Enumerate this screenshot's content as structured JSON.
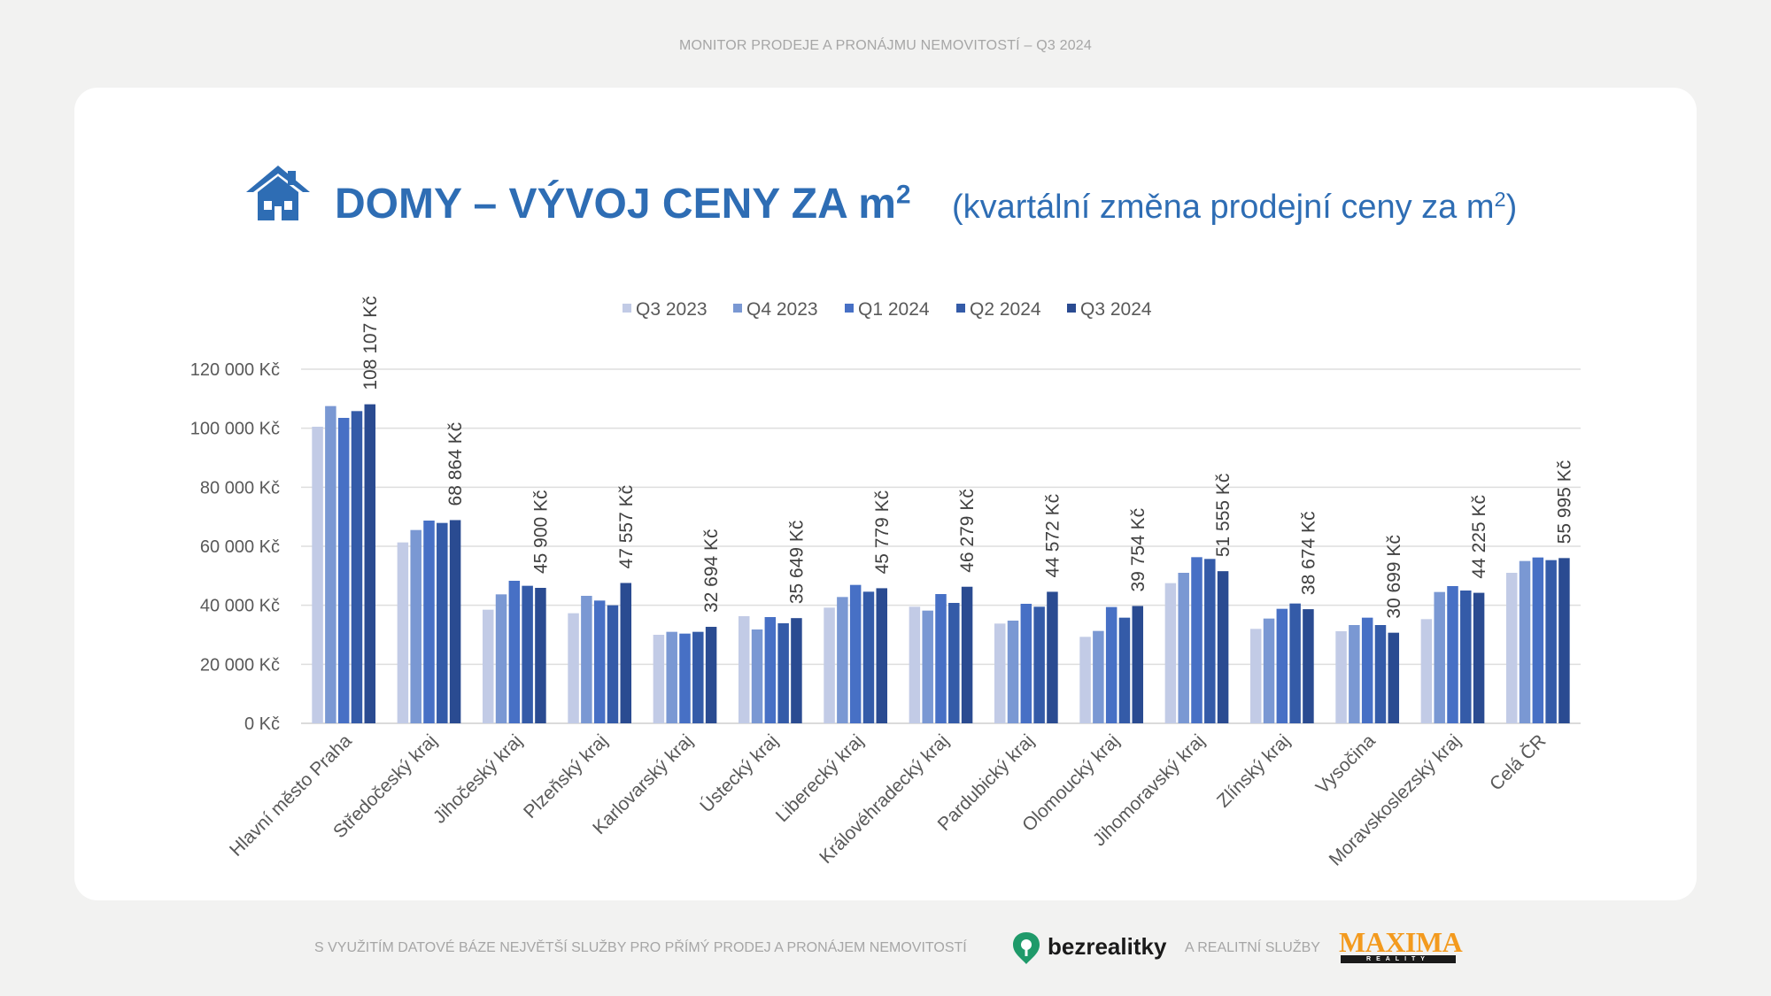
{
  "header": {
    "caption": "MONITOR PRODEJE A PRONÁJMU NEMOVITOSTÍ – Q3 2024",
    "title": "DOMY – VÝVOJ CENY ZA m",
    "title_sup": "2",
    "subtitle": "(kvartální změna prodejní ceny za m",
    "subtitle_sup": "2",
    "subtitle_end": ")",
    "icon": "house-icon"
  },
  "colors": {
    "accent": "#2e6db4",
    "series": [
      "#c2cbe6",
      "#7a98d3",
      "#4770c5",
      "#345ba8",
      "#2a4b91"
    ]
  },
  "chart_data": {
    "type": "bar",
    "categories": [
      "Hlavní město Praha",
      "Středočeský kraj",
      "Jihočeský kraj",
      "Plzeňský kraj",
      "Karlovarský kraj",
      "Ústecký kraj",
      "Liberecký kraj",
      "Královéhradecký kraj",
      "Pardubický kraj",
      "Olomoucký kraj",
      "Jihomoravský kraj",
      "Zlínský kraj",
      "Vysočina",
      "Moravskoslezský kraj",
      "Celá ČR"
    ],
    "series": [
      {
        "name": "Q3 2023",
        "values": [
          100500,
          61300,
          38500,
          37300,
          30000,
          36300,
          39200,
          39500,
          33800,
          29300,
          47500,
          32000,
          31200,
          35300,
          51000
        ]
      },
      {
        "name": "Q4 2023",
        "values": [
          107500,
          65500,
          43700,
          43200,
          31000,
          31800,
          42800,
          38200,
          34800,
          31300,
          51000,
          35500,
          33300,
          44500,
          55000
        ]
      },
      {
        "name": "Q1 2024",
        "values": [
          103500,
          68700,
          48300,
          41600,
          30400,
          36000,
          46900,
          43800,
          40500,
          39400,
          56300,
          38800,
          35800,
          46500,
          56200
        ]
      },
      {
        "name": "Q2 2024",
        "values": [
          105800,
          67900,
          46600,
          40000,
          31000,
          33900,
          44600,
          40800,
          39500,
          35800,
          55700,
          40600,
          33300,
          45000,
          55300
        ]
      },
      {
        "name": "Q3 2024",
        "values": [
          108107,
          68864,
          45900,
          47557,
          32694,
          35649,
          45779,
          46279,
          44572,
          39754,
          51555,
          38674,
          30699,
          44225,
          55995
        ]
      }
    ],
    "data_labels": [
      "108 107 Kč",
      "68 864 Kč",
      "45 900 Kč",
      "47 557 Kč",
      "32 694 Kč",
      "35 649 Kč",
      "45 779 Kč",
      "46 279 Kč",
      "44 572 Kč",
      "39 754 Kč",
      "51 555 Kč",
      "38 674 Kč",
      "30 699 Kč",
      "44 225 Kč",
      "55 995 Kč"
    ],
    "y_ticks": [
      "0 Kč",
      "20 000 Kč",
      "40 000 Kč",
      "60 000 Kč",
      "80 000 Kč",
      "100 000 Kč",
      "120 000 Kč"
    ],
    "ylim": [
      0,
      120000
    ],
    "grid": true,
    "legend_position": "top"
  },
  "footer": {
    "left_text": "S VYUŽITÍM DATOVÉ BÁZE NEJVĚTŠÍ SLUŽBY PRO PŘÍMÝ PRODEJ A PRONÁJEM NEMOVITOSTÍ",
    "brand_text": "bezrealitky",
    "mid_text": "A REALITNÍ SLUŽBY",
    "maxima_word": "MAXIMA",
    "maxima_sub": "REALITY"
  }
}
